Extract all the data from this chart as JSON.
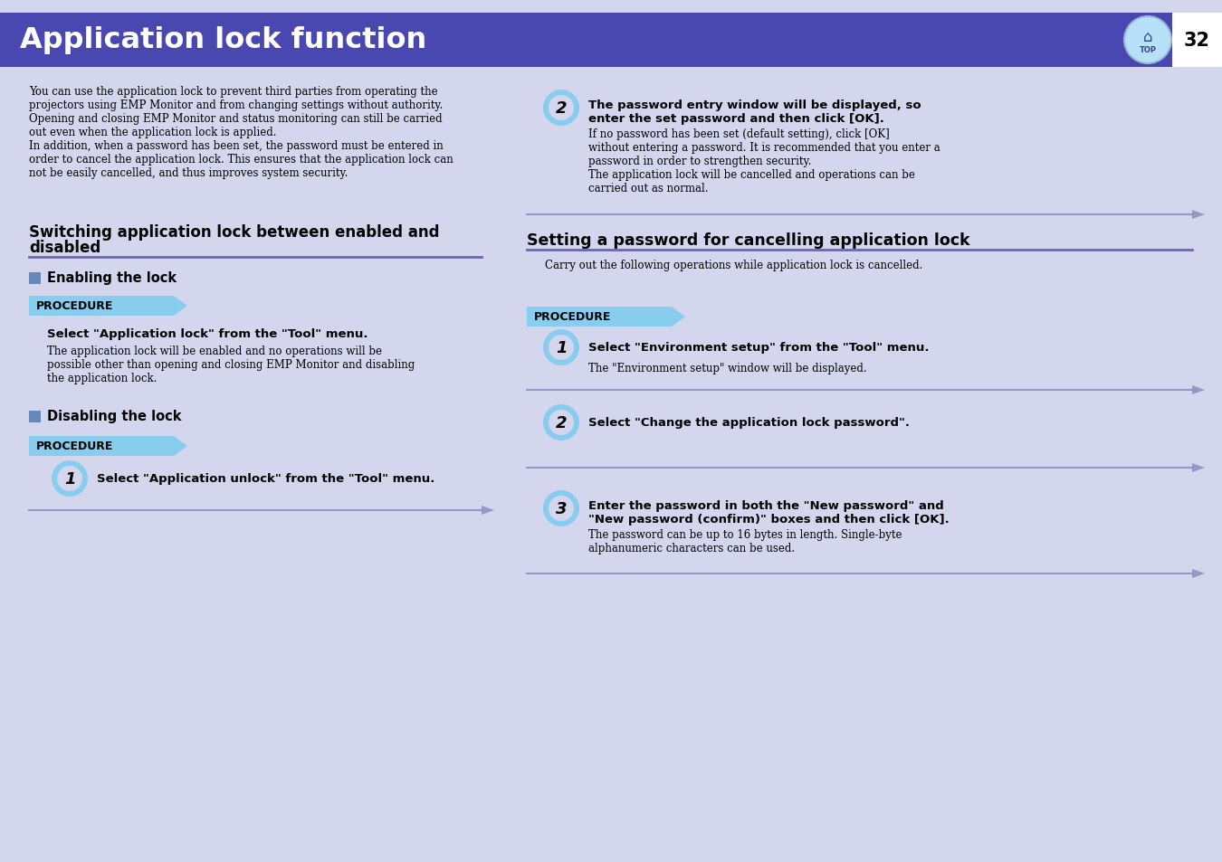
{
  "title": "Application lock function",
  "page_num": "32",
  "bg_color": "#d4d6ee",
  "header_color": "#4848b0",
  "header_text_color": "#ffffff",
  "body_text_color": "#000000",
  "section_line_color": "#6666bb",
  "procedure_bg": "#88ccee",
  "procedure_text": "PROCEDURE",
  "step_circle_outer": "#88ccee",
  "step_circle_inner": "#d4d6ee",
  "arrow_color": "#8888bb",
  "blue_square_color": "#6688bb",
  "intro_text_lines": [
    "You can use the application lock to prevent third parties from operating the",
    "projectors using EMP Monitor and from changing settings without authority.",
    "Opening and closing EMP Monitor and status monitoring can still be carried",
    "out even when the application lock is applied.",
    "In addition, when a password has been set, the password must be entered in",
    "order to cancel the application lock. This ensures that the application lock can",
    "not be easily cancelled, and thus improves system security."
  ],
  "section1_line1": "Switching application lock between enabled and",
  "section1_line2": "disabled",
  "subsection1": "Enabling the lock",
  "enabling_bold": "Select \"Application lock\" from the \"Tool\" menu.",
  "enabling_body": [
    "The application lock will be enabled and no operations will be",
    "possible other than opening and closing EMP Monitor and disabling",
    "the application lock."
  ],
  "subsection2": "Disabling the lock",
  "disabling_bold": "Select \"Application unlock\" from the \"Tool\" menu.",
  "right_step2_bold1": "The password entry window will be displayed, so",
  "right_step2_bold2": "enter the set password and then click [OK].",
  "right_step2_body": [
    "If no password has been set (default setting), click [OK]",
    "without entering a password. It is recommended that you enter a",
    "password in order to strengthen security.",
    "The application lock will be cancelled and operations can be",
    "carried out as normal."
  ],
  "section2_title": "Setting a password for cancelling application lock",
  "section2_intro": "Carry out the following operations while application lock is cancelled.",
  "rp1_bold": "Select \"Environment setup\" from the \"Tool\" menu.",
  "rp1_body": "The \"Environment setup\" window will be displayed.",
  "rp2_bold": "Select \"Change the application lock password\".",
  "rp3_bold1": "Enter the password in both the \"New password\" and",
  "rp3_bold2": "\"New password (confirm)\" boxes and then click [OK].",
  "rp3_body": [
    "The password can be up to 16 bytes in length. Single-byte",
    "alphanumeric characters can be used."
  ]
}
